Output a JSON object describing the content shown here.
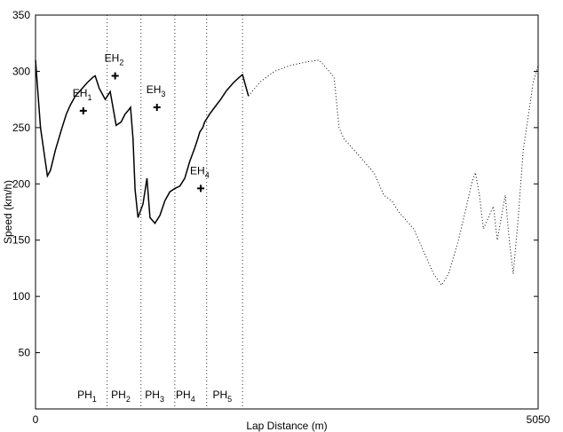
{
  "chart_data": {
    "type": "line",
    "xlabel": "Lap Distance (m)",
    "ylabel": "Speed (km/h)",
    "xlim": [
      0,
      5050
    ],
    "ylim": [
      0,
      350
    ],
    "x_tick_labels": [
      "0",
      "5050"
    ],
    "y_ticks": [
      50,
      100,
      150,
      200,
      250,
      300,
      350
    ],
    "grid": false,
    "series": [
      {
        "style": "solid",
        "x": [
          0,
          50,
          120,
          150,
          200,
          260,
          310,
          350,
          400,
          470,
          520,
          580,
          600,
          640,
          700,
          750,
          810,
          860,
          900,
          930,
          955,
          980,
          1000,
          1030,
          1080,
          1120,
          1150,
          1200,
          1250,
          1300,
          1350,
          1400,
          1450,
          1500,
          1550,
          1600,
          1630,
          1650,
          1680,
          1700,
          1750,
          1800,
          1860,
          1920,
          1990,
          2050,
          2080,
          2140
        ],
        "y": [
          310,
          250,
          207,
          212,
          230,
          248,
          262,
          270,
          278,
          285,
          290,
          295,
          296,
          285,
          275,
          282,
          252,
          255,
          262,
          265,
          268,
          240,
          195,
          170,
          182,
          205,
          170,
          165,
          172,
          185,
          193,
          196,
          198,
          205,
          220,
          232,
          240,
          246,
          250,
          255,
          262,
          268,
          275,
          283,
          290,
          295,
          297,
          278
        ]
      },
      {
        "style": "dotted",
        "x": [
          2140,
          2250,
          2400,
          2550,
          2700,
          2850,
          3000,
          3050,
          3100,
          3200,
          3300,
          3400,
          3450,
          3500,
          3580,
          3650,
          3720,
          3800,
          3850,
          3900,
          3950,
          4000,
          4080,
          4150,
          4250,
          4330,
          4380,
          4420,
          4460,
          4500,
          4550,
          4600,
          4640,
          4680,
          4720,
          4760,
          4800,
          4850,
          4900,
          5000,
          5050
        ],
        "y": [
          278,
          290,
          300,
          305,
          308,
          310,
          295,
          250,
          240,
          230,
          220,
          210,
          200,
          190,
          185,
          175,
          168,
          160,
          150,
          140,
          130,
          120,
          110,
          120,
          150,
          180,
          200,
          210,
          190,
          160,
          170,
          180,
          150,
          170,
          190,
          150,
          120,
          170,
          230,
          290,
          305
        ]
      }
    ],
    "points": [
      {
        "label": "EH",
        "sub": "1",
        "x": 480,
        "y": 265
      },
      {
        "label": "EH",
        "sub": "2",
        "x": 800,
        "y": 296
      },
      {
        "label": "EH",
        "sub": "3",
        "x": 1220,
        "y": 268
      },
      {
        "label": "EH",
        "sub": "4",
        "x": 1660,
        "y": 196
      }
    ],
    "phases": [
      {
        "label": "PH",
        "sub": "1",
        "x": 720
      },
      {
        "label": "PH",
        "sub": "2",
        "x": 1060
      },
      {
        "label": "PH",
        "sub": "3",
        "x": 1400
      },
      {
        "label": "PH",
        "sub": "4",
        "x": 1720
      },
      {
        "label": "PH",
        "sub": "5",
        "x": 2080
      }
    ],
    "phase_label_positions": [
      {
        "sub": "1",
        "x": 420
      },
      {
        "sub": "2",
        "x": 760
      },
      {
        "sub": "3",
        "x": 1100
      },
      {
        "sub": "4",
        "x": 1410
      },
      {
        "sub": "5",
        "x": 1780
      }
    ]
  }
}
